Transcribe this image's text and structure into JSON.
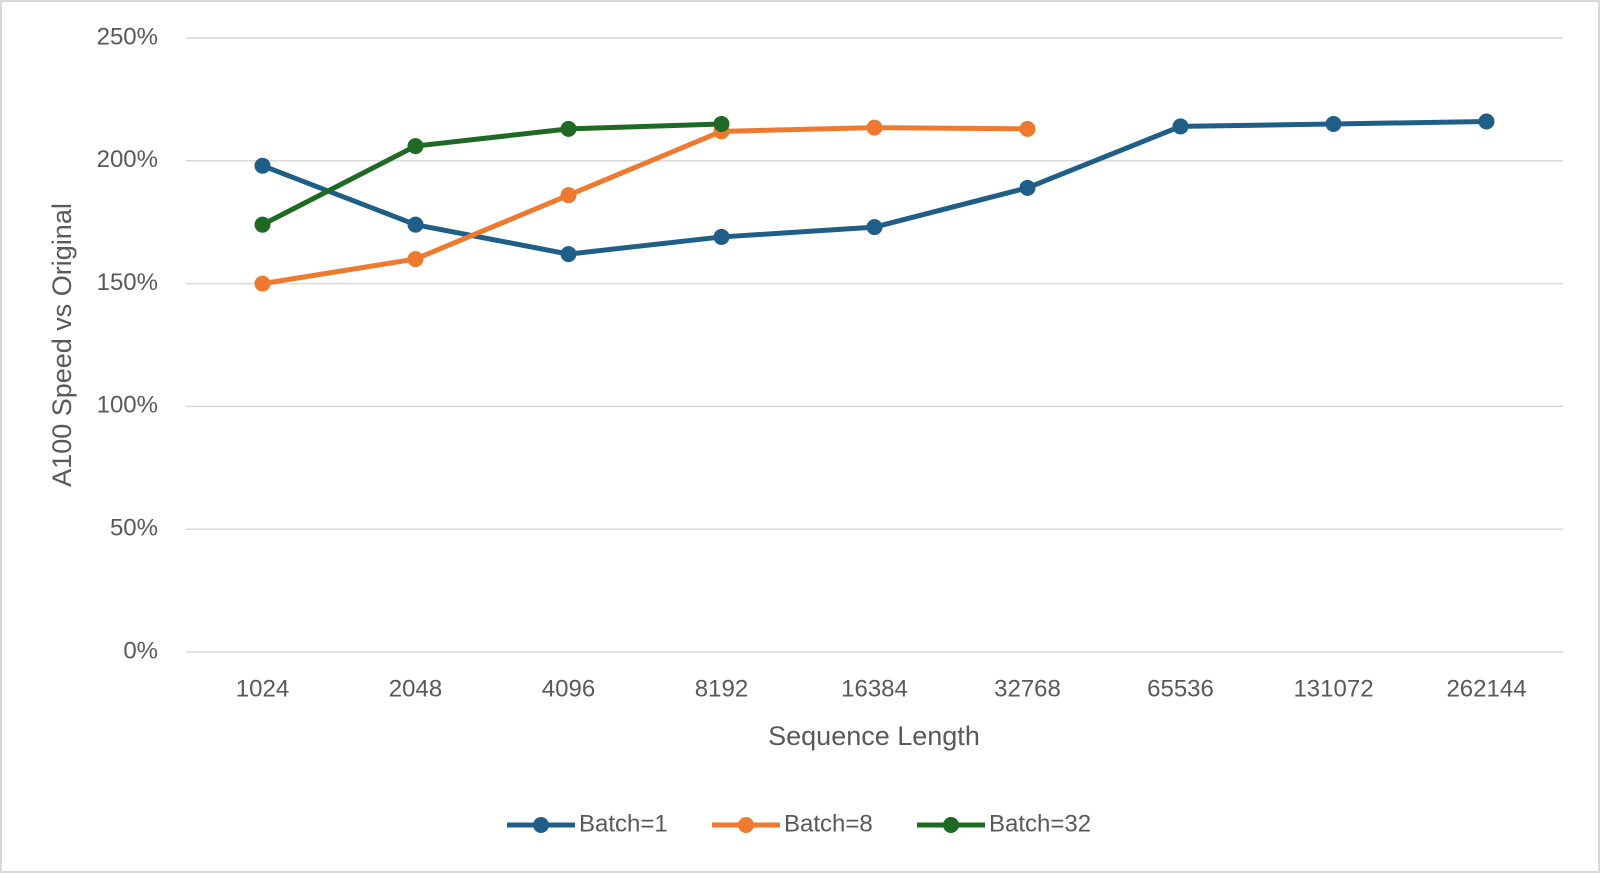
{
  "chart_data": {
    "type": "line",
    "x_label": "Sequence Length",
    "y_label": "A100 Speed vs Original",
    "categories": [
      "1024",
      "2048",
      "4096",
      "8192",
      "16384",
      "32768",
      "65536",
      "131072",
      "262144"
    ],
    "series": [
      {
        "name": "Batch=1",
        "color": "#1f5f87",
        "values": [
          198,
          174,
          162,
          169,
          173,
          189,
          214,
          215,
          216
        ]
      },
      {
        "name": "Batch=8",
        "color": "#ee7a30",
        "values": [
          150,
          160,
          186,
          212,
          213.5,
          213,
          null,
          null,
          null
        ]
      },
      {
        "name": "Batch=32",
        "color": "#1e6a24",
        "values": [
          174,
          206,
          213,
          215,
          null,
          null,
          null,
          null,
          null
        ]
      }
    ],
    "ylim": [
      0,
      250
    ],
    "yticks": [
      {
        "value": 0,
        "label": "0%"
      },
      {
        "value": 50,
        "label": "50%"
      },
      {
        "value": 100,
        "label": "100%"
      },
      {
        "value": 150,
        "label": "150%"
      },
      {
        "value": 200,
        "label": "200%"
      },
      {
        "value": 250,
        "label": "250%"
      }
    ],
    "grid": true,
    "legend": "bottom"
  }
}
